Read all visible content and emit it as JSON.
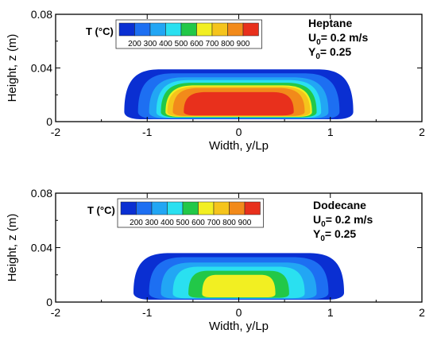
{
  "legend_colors": [
    "#0a2fd2",
    "#1d6ff2",
    "#22a6f4",
    "#2ae0f0",
    "#22c848",
    "#f2ef22",
    "#f5c41c",
    "#f28a1a",
    "#e8301c"
  ],
  "chart_data": [
    {
      "type": "heatmap",
      "plot_type": "contour",
      "xlabel": "Width, y/Lp",
      "ylabel": "Height, z (m)",
      "xlim": [
        -2,
        2
      ],
      "ylim": [
        0,
        0.08
      ],
      "xticks": [
        "-2",
        "-1",
        "0",
        "1",
        "2"
      ],
      "yticks": [
        "0",
        "0.04",
        "0.08"
      ],
      "legend": {
        "title": "T (°C)",
        "position": "top-left",
        "levels": [
          "200",
          "300",
          "400",
          "500",
          "600",
          "700",
          "800",
          "900"
        ]
      },
      "annotation": {
        "fuel": "Heptane",
        "u_label": "U",
        "u_sub": "0",
        "u_value": "= 0.2 m/s",
        "y_label": "Y",
        "y_sub": "0",
        "y_value": "= 0.25"
      },
      "contours": [
        {
          "level_index": 0,
          "x_min": -1.25,
          "x_max": 1.25,
          "z_top": 0.039
        },
        {
          "level_index": 1,
          "x_min": -1.1,
          "x_max": 1.1,
          "z_top": 0.036
        },
        {
          "level_index": 2,
          "x_min": -0.98,
          "x_max": 0.98,
          "z_top": 0.033
        },
        {
          "level_index": 3,
          "x_min": -0.9,
          "x_max": 0.9,
          "z_top": 0.031
        },
        {
          "level_index": 4,
          "x_min": -0.85,
          "x_max": 0.85,
          "z_top": 0.029
        },
        {
          "level_index": 5,
          "x_min": -0.8,
          "x_max": 0.8,
          "z_top": 0.027
        },
        {
          "level_index": 6,
          "x_min": -0.78,
          "x_max": 0.78,
          "z_top": 0.026
        },
        {
          "level_index": 7,
          "x_min": -0.72,
          "x_max": 0.72,
          "z_top": 0.025
        },
        {
          "level_index": 8,
          "x_min": -0.6,
          "x_max": 0.6,
          "z_top": 0.022
        }
      ]
    },
    {
      "type": "heatmap",
      "plot_type": "contour",
      "xlabel": "Width, y/Lp",
      "ylabel": "Height, z (m)",
      "xlim": [
        -2,
        2
      ],
      "ylim": [
        0,
        0.08
      ],
      "xticks": [
        "-2",
        "-1",
        "0",
        "1",
        "2"
      ],
      "yticks": [
        "0",
        "0.04",
        "0.08"
      ],
      "legend": {
        "title": "T (°C)",
        "position": "top-left",
        "levels": [
          "200",
          "300",
          "400",
          "500",
          "600",
          "700",
          "800",
          "900"
        ]
      },
      "annotation": {
        "fuel": "Dodecane",
        "u_label": "U",
        "u_sub": "0",
        "u_value": "= 0.2 m/s",
        "y_label": "Y",
        "y_sub": "0",
        "y_value": "= 0.25"
      },
      "contours": [
        {
          "level_index": 0,
          "x_min": -1.15,
          "x_max": 1.15,
          "z_top": 0.036
        },
        {
          "level_index": 1,
          "x_min": -0.98,
          "x_max": 0.98,
          "z_top": 0.033
        },
        {
          "level_index": 2,
          "x_min": -0.85,
          "x_max": 0.85,
          "z_top": 0.029
        },
        {
          "level_index": 3,
          "x_min": -0.72,
          "x_max": 0.72,
          "z_top": 0.026
        },
        {
          "level_index": 4,
          "x_min": -0.55,
          "x_max": 0.55,
          "z_top": 0.023
        },
        {
          "level_index": 5,
          "x_min": -0.4,
          "x_max": 0.4,
          "z_top": 0.02
        }
      ]
    }
  ]
}
